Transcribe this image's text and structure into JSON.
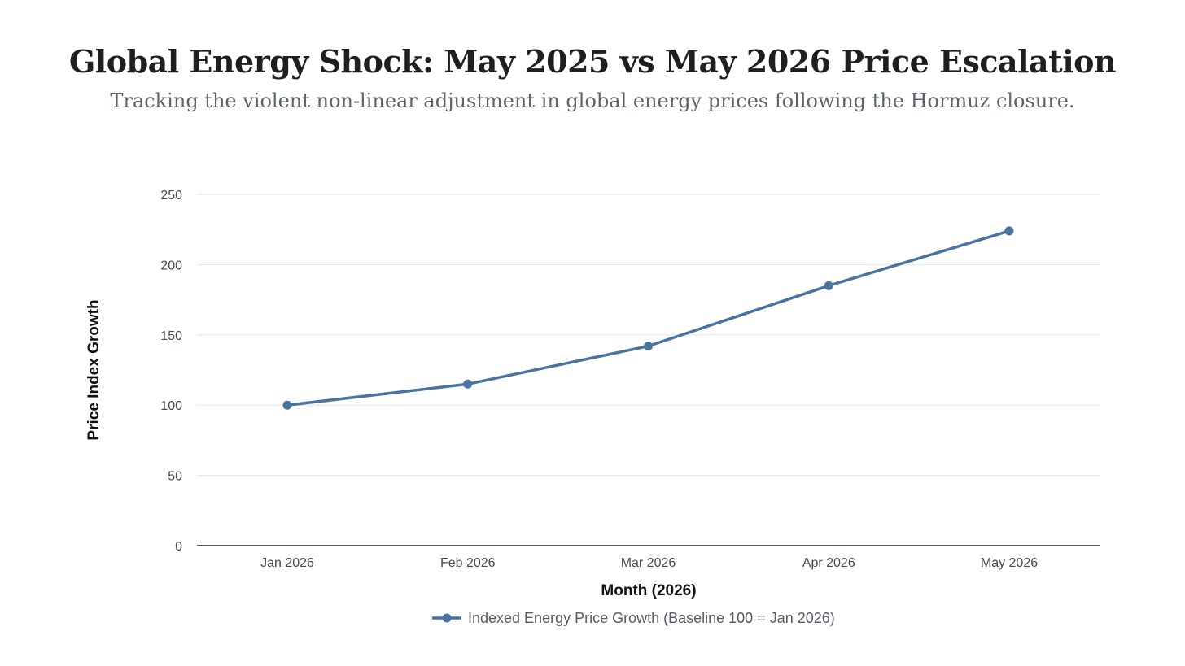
{
  "header": {
    "title": "Global Energy Shock: May 2025 vs May 2026 Price Escalation",
    "subtitle": "Tracking the violent non-linear adjustment in global energy prices following the Hormuz closure."
  },
  "chart_data": {
    "type": "line",
    "categories": [
      "Jan 2026",
      "Feb 2026",
      "Mar 2026",
      "Apr 2026",
      "May 2026"
    ],
    "series": [
      {
        "name": "Indexed Energy Price Growth (Baseline 100 = Jan 2026)",
        "values": [
          100,
          115,
          142,
          185,
          224
        ],
        "color": "#4a73a0"
      }
    ],
    "xlabel": "Month (2026)",
    "ylabel": "Price Index Growth",
    "ylim": [
      0,
      250
    ],
    "yticks": [
      0,
      50,
      100,
      150,
      200,
      250
    ],
    "grid": true,
    "legend": "bottom-center"
  },
  "colors": {
    "line": "#4a73a0",
    "grid": "#e3e6ea",
    "axis": "#222222"
  }
}
